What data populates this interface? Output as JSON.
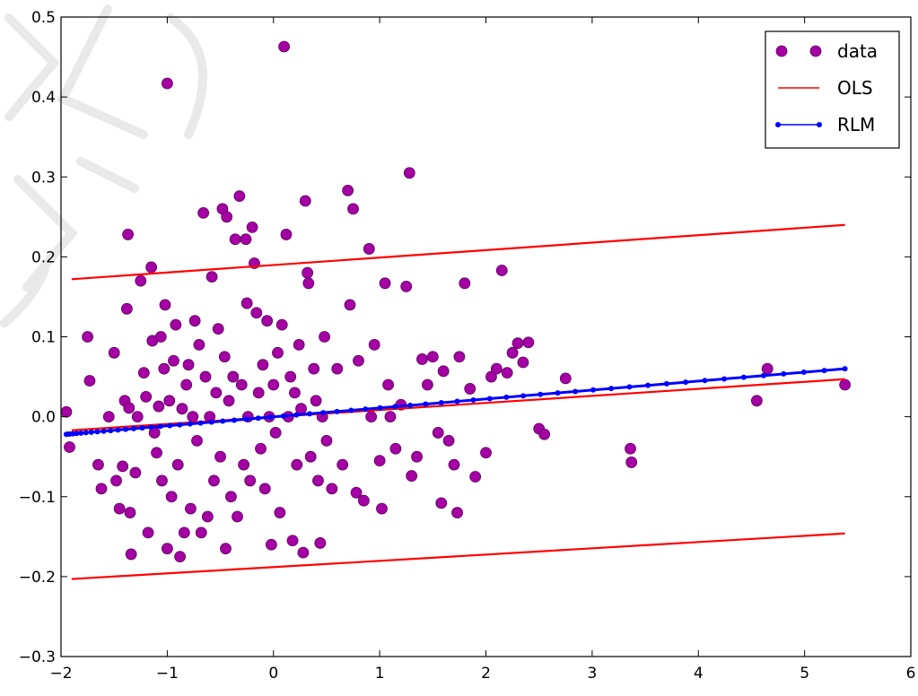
{
  "chart_data": {
    "type": "scatter",
    "title": "",
    "xlabel": "",
    "ylabel": "",
    "xlim": [
      -2,
      6
    ],
    "ylim": [
      -0.3,
      0.5
    ],
    "x_ticks": [
      -2,
      -1,
      0,
      1,
      2,
      3,
      4,
      5,
      6
    ],
    "x_tick_labels": [
      "−2",
      "−1",
      "0",
      "1",
      "2",
      "3",
      "4",
      "5",
      "6"
    ],
    "y_ticks": [
      -0.3,
      -0.2,
      -0.1,
      0.0,
      0.1,
      0.2,
      0.3,
      0.4,
      0.5
    ],
    "y_tick_labels": [
      "−0.3",
      "−0.2",
      "−0.1",
      "0.0",
      "0.1",
      "0.2",
      "0.3",
      "0.4",
      "0.5"
    ],
    "grid": false,
    "legend_position": "top-right",
    "legend": [
      {
        "label": "data",
        "style": "marker",
        "color": "#a400a4"
      },
      {
        "label": "OLS",
        "style": "line",
        "color": "#ff0000"
      },
      {
        "label": "RLM",
        "style": "line-marker",
        "color": "#0000ff"
      }
    ],
    "series": [
      {
        "name": "data",
        "kind": "scatter",
        "color": "#a400a4",
        "points": [
          [
            -1.95,
            0.006
          ],
          [
            -1.92,
            -0.038
          ],
          [
            -1.75,
            0.1
          ],
          [
            -1.73,
            0.045
          ],
          [
            -1.65,
            -0.06
          ],
          [
            -1.62,
            -0.09
          ],
          [
            -1.55,
            0.0
          ],
          [
            -1.5,
            0.08
          ],
          [
            -1.48,
            -0.08
          ],
          [
            -1.45,
            -0.115
          ],
          [
            -1.42,
            -0.062
          ],
          [
            -1.4,
            0.02
          ],
          [
            -1.38,
            0.135
          ],
          [
            -1.37,
            0.228
          ],
          [
            -1.36,
            0.011
          ],
          [
            -1.35,
            -0.12
          ],
          [
            -1.34,
            -0.172
          ],
          [
            -1.3,
            -0.07
          ],
          [
            -1.28,
            0.0
          ],
          [
            -1.25,
            0.17
          ],
          [
            -1.22,
            0.055
          ],
          [
            -1.2,
            0.025
          ],
          [
            -1.18,
            -0.145
          ],
          [
            -1.15,
            0.187
          ],
          [
            -1.14,
            0.095
          ],
          [
            -1.12,
            -0.02
          ],
          [
            -1.1,
            -0.045
          ],
          [
            -1.08,
            0.013
          ],
          [
            -1.06,
            0.1
          ],
          [
            -1.05,
            -0.08
          ],
          [
            -1.03,
            0.06
          ],
          [
            -1.02,
            0.14
          ],
          [
            -1.0,
            0.417
          ],
          [
            -1.0,
            -0.165
          ],
          [
            -0.98,
            0.02
          ],
          [
            -0.96,
            -0.1
          ],
          [
            -0.94,
            0.07
          ],
          [
            -0.92,
            0.115
          ],
          [
            -0.9,
            -0.06
          ],
          [
            -0.88,
            -0.175
          ],
          [
            -0.86,
            0.01
          ],
          [
            -0.84,
            -0.145
          ],
          [
            -0.82,
            0.04
          ],
          [
            -0.8,
            0.065
          ],
          [
            -0.78,
            -0.115
          ],
          [
            -0.76,
            0.0
          ],
          [
            -0.74,
            0.12
          ],
          [
            -0.72,
            -0.03
          ],
          [
            -0.7,
            0.09
          ],
          [
            -0.68,
            -0.145
          ],
          [
            -0.66,
            0.255
          ],
          [
            -0.64,
            0.05
          ],
          [
            -0.62,
            -0.125
          ],
          [
            -0.6,
            0.0
          ],
          [
            -0.58,
            0.175
          ],
          [
            -0.56,
            -0.08
          ],
          [
            -0.54,
            0.03
          ],
          [
            -0.52,
            0.11
          ],
          [
            -0.5,
            -0.05
          ],
          [
            -0.48,
            0.26
          ],
          [
            -0.46,
            0.075
          ],
          [
            -0.45,
            -0.165
          ],
          [
            -0.44,
            0.25
          ],
          [
            -0.42,
            0.02
          ],
          [
            -0.4,
            -0.1
          ],
          [
            -0.38,
            0.05
          ],
          [
            -0.36,
            0.222
          ],
          [
            -0.34,
            -0.125
          ],
          [
            -0.32,
            0.276
          ],
          [
            -0.3,
            0.04
          ],
          [
            -0.28,
            -0.06
          ],
          [
            -0.26,
            0.222
          ],
          [
            -0.25,
            0.142
          ],
          [
            -0.24,
            0.0
          ],
          [
            -0.22,
            -0.08
          ],
          [
            -0.2,
            0.237
          ],
          [
            -0.18,
            0.192
          ],
          [
            -0.16,
            0.13
          ],
          [
            -0.14,
            0.03
          ],
          [
            -0.12,
            -0.04
          ],
          [
            -0.1,
            0.065
          ],
          [
            -0.08,
            -0.09
          ],
          [
            -0.06,
            0.12
          ],
          [
            -0.04,
            0.0
          ],
          [
            -0.02,
            -0.16
          ],
          [
            0.0,
            0.04
          ],
          [
            0.02,
            -0.02
          ],
          [
            0.04,
            0.08
          ],
          [
            0.06,
            -0.12
          ],
          [
            0.08,
            0.115
          ],
          [
            0.1,
            0.463
          ],
          [
            0.12,
            0.228
          ],
          [
            0.14,
            0.0
          ],
          [
            0.16,
            0.05
          ],
          [
            0.18,
            -0.155
          ],
          [
            0.2,
            0.03
          ],
          [
            0.22,
            -0.06
          ],
          [
            0.24,
            0.09
          ],
          [
            0.26,
            0.01
          ],
          [
            0.28,
            -0.17
          ],
          [
            0.3,
            0.27
          ],
          [
            0.32,
            0.18
          ],
          [
            0.33,
            0.167
          ],
          [
            0.35,
            -0.05
          ],
          [
            0.38,
            0.06
          ],
          [
            0.4,
            0.02
          ],
          [
            0.42,
            -0.08
          ],
          [
            0.44,
            -0.158
          ],
          [
            0.46,
            0.0
          ],
          [
            0.48,
            0.1
          ],
          [
            0.5,
            -0.03
          ],
          [
            0.55,
            -0.09
          ],
          [
            0.6,
            0.06
          ],
          [
            0.65,
            -0.06
          ],
          [
            0.7,
            0.283
          ],
          [
            0.72,
            0.14
          ],
          [
            0.75,
            0.26
          ],
          [
            0.78,
            -0.095
          ],
          [
            0.8,
            0.07
          ],
          [
            0.85,
            -0.105
          ],
          [
            0.9,
            0.21
          ],
          [
            0.92,
            0.0
          ],
          [
            0.95,
            0.09
          ],
          [
            1.0,
            -0.055
          ],
          [
            1.02,
            -0.115
          ],
          [
            1.05,
            0.167
          ],
          [
            1.08,
            0.04
          ],
          [
            1.1,
            0.0
          ],
          [
            1.15,
            -0.04
          ],
          [
            1.2,
            0.015
          ],
          [
            1.25,
            0.163
          ],
          [
            1.28,
            0.305
          ],
          [
            1.3,
            -0.074
          ],
          [
            1.35,
            -0.05
          ],
          [
            1.4,
            0.072
          ],
          [
            1.45,
            0.04
          ],
          [
            1.5,
            0.075
          ],
          [
            1.55,
            -0.02
          ],
          [
            1.58,
            -0.108
          ],
          [
            1.6,
            0.057
          ],
          [
            1.65,
            -0.03
          ],
          [
            1.7,
            -0.06
          ],
          [
            1.73,
            -0.12
          ],
          [
            1.75,
            0.075
          ],
          [
            1.8,
            0.167
          ],
          [
            1.85,
            0.035
          ],
          [
            1.9,
            -0.075
          ],
          [
            2.0,
            -0.045
          ],
          [
            2.05,
            0.05
          ],
          [
            2.1,
            0.06
          ],
          [
            2.15,
            0.183
          ],
          [
            2.2,
            0.055
          ],
          [
            2.25,
            0.08
          ],
          [
            2.3,
            0.092
          ],
          [
            2.35,
            0.068
          ],
          [
            2.4,
            0.093
          ],
          [
            2.5,
            -0.015
          ],
          [
            2.55,
            -0.022
          ],
          [
            2.75,
            0.048
          ],
          [
            3.36,
            -0.04
          ],
          [
            3.37,
            -0.057
          ],
          [
            4.55,
            0.02
          ],
          [
            4.65,
            0.06
          ],
          [
            5.38,
            0.04
          ]
        ]
      },
      {
        "name": "OLS",
        "kind": "line",
        "color": "#ff0000",
        "points": [
          [
            -1.9,
            -0.017
          ],
          [
            5.38,
            0.047
          ]
        ]
      },
      {
        "name": "",
        "kind": "line",
        "color": "#ff0000",
        "points": [
          [
            -1.9,
            0.172
          ],
          [
            5.38,
            0.24
          ]
        ]
      },
      {
        "name": "",
        "kind": "line",
        "color": "#ff0000",
        "points": [
          [
            -1.9,
            -0.203
          ],
          [
            5.38,
            -0.146
          ]
        ]
      },
      {
        "name": "RLM",
        "kind": "line-marker",
        "color": "#0000ff",
        "points": [
          [
            -1.95,
            -0.022
          ],
          [
            5.38,
            0.06
          ]
        ]
      }
    ]
  }
}
